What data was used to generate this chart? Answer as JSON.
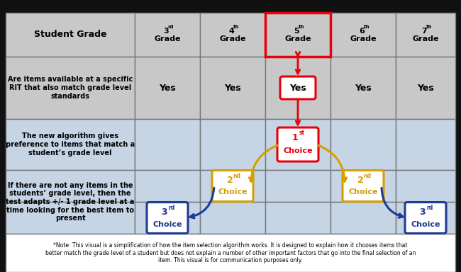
{
  "bg_color": "#111111",
  "header_bg": "#c8c8c8",
  "row1_bg": "#c8c8c8",
  "row2_bg": "#c5d5e5",
  "row3_bg": "#c5d5e5",
  "footer_bg": "#ffffff",
  "red": "#e8000a",
  "gold": "#d4a000",
  "blue": "#1f3a93",
  "note_text": "*Note: This visual is a simplification of how the item selection algorithm works. It is designed to explain how it chooses items that\nbetter match the grade level of a student but does not explain a number of other important factors that go into the final selection of an\nitem. This visual is for communication purposes only.",
  "row1_label": "Are items available at a specific\nRIT that also match grade level\nstandards",
  "row2_label": "The new algorithm gives\npreference to items that match a\nstudent’s grade level",
  "row3_label": "If there are not any items in the\nstudents’ grade level, then the\ntest adapts +/- 1 grade level at a\ntime looking for the best item to\npresent"
}
